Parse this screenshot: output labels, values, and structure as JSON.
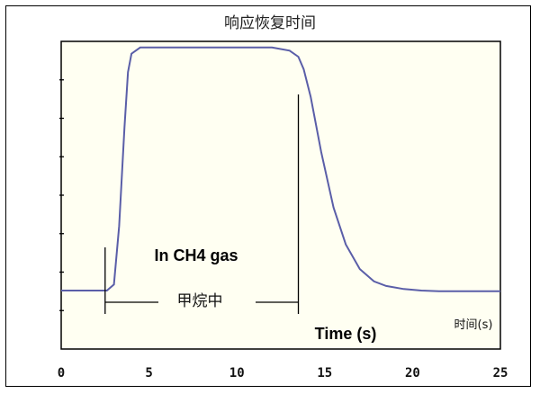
{
  "chart_data": {
    "type": "line",
    "title": "响应恢复时间",
    "xlabel": "时间(s)",
    "x_annotation": "Time (s)",
    "xlim": [
      0,
      25
    ],
    "x_ticks": [
      0,
      5,
      10,
      15,
      20,
      25
    ],
    "x_tick_labels": [
      "0",
      "5",
      "10",
      "15",
      "20",
      "25"
    ],
    "ylim": [
      0,
      1
    ],
    "grid": false,
    "colors": {
      "line": "#5a5ea8",
      "plot_bg": "#fffff2",
      "frame": "#000000"
    },
    "series": [
      {
        "x": [
          0,
          2.0,
          2.6,
          3.0,
          3.3,
          3.6,
          3.8,
          4.0,
          4.5,
          6,
          8,
          10,
          12,
          13,
          13.5,
          13.8,
          14.2,
          14.8,
          15.5,
          16.2,
          17.0,
          17.8,
          18.5,
          19.5,
          20.5,
          21.5,
          25
        ],
        "values": [
          0.19,
          0.19,
          0.19,
          0.21,
          0.4,
          0.72,
          0.9,
          0.96,
          0.98,
          0.98,
          0.98,
          0.98,
          0.98,
          0.97,
          0.95,
          0.91,
          0.82,
          0.64,
          0.46,
          0.34,
          0.26,
          0.22,
          0.205,
          0.195,
          0.19,
          0.188,
          0.188
        ]
      }
    ],
    "annotations": {
      "gas_label": "In CH4 gas",
      "interval_label": "甲烷中",
      "interval_start": 2.5,
      "interval_end": 13.5
    }
  }
}
